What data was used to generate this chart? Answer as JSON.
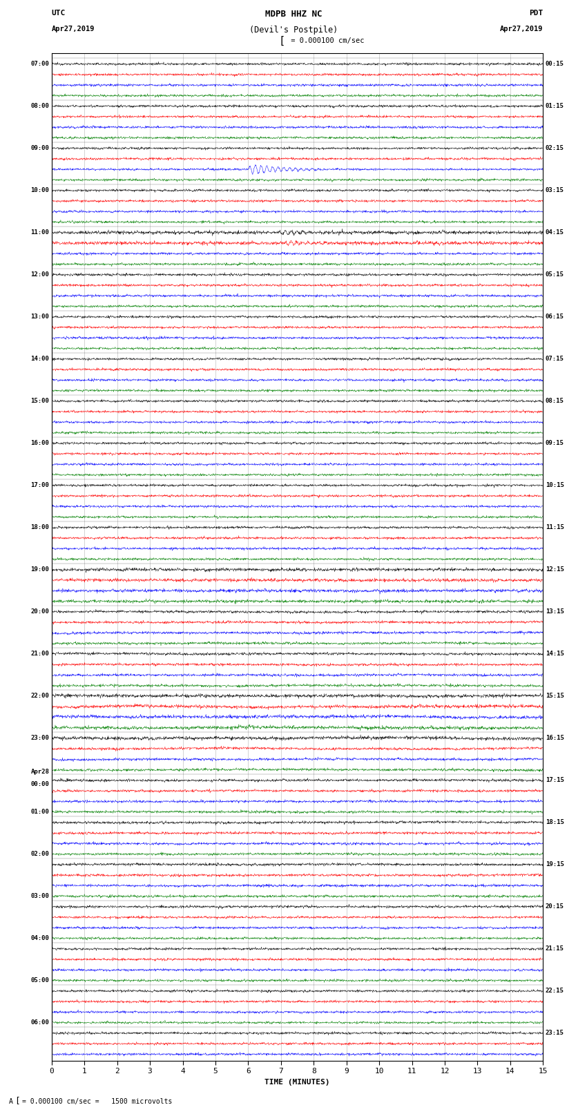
{
  "title_line1": "MDPB HHZ NC",
  "title_line2": "(Devil's Postpile)",
  "scale_label": "= 0.000100 cm/sec",
  "footer_label": "= 0.000100 cm/sec =   1500 microvolts",
  "utc_label": "UTC",
  "utc_date": "Apr27,2019",
  "pdt_label": "PDT",
  "pdt_date": "Apr27,2019",
  "xlabel": "TIME (MINUTES)",
  "left_times": [
    "07:00",
    "",
    "",
    "",
    "08:00",
    "",
    "",
    "",
    "09:00",
    "",
    "",
    "",
    "10:00",
    "",
    "",
    "",
    "11:00",
    "",
    "",
    "",
    "12:00",
    "",
    "",
    "",
    "13:00",
    "",
    "",
    "",
    "14:00",
    "",
    "",
    "",
    "15:00",
    "",
    "",
    "",
    "16:00",
    "",
    "",
    "",
    "17:00",
    "",
    "",
    "",
    "18:00",
    "",
    "",
    "",
    "19:00",
    "",
    "",
    "",
    "20:00",
    "",
    "",
    "",
    "21:00",
    "",
    "",
    "",
    "22:00",
    "",
    "",
    "",
    "23:00",
    "",
    "",
    "",
    "Apr28",
    "00:00",
    "",
    "",
    "01:00",
    "",
    "",
    "",
    "02:00",
    "",
    "",
    "",
    "03:00",
    "",
    "",
    "",
    "04:00",
    "",
    "",
    "",
    "05:00",
    "",
    "",
    "",
    "06:00",
    "",
    ""
  ],
  "right_times": [
    "00:15",
    "",
    "",
    "",
    "01:15",
    "",
    "",
    "",
    "02:15",
    "",
    "",
    "",
    "03:15",
    "",
    "",
    "",
    "04:15",
    "",
    "",
    "",
    "05:15",
    "",
    "",
    "",
    "06:15",
    "",
    "",
    "",
    "07:15",
    "",
    "",
    "",
    "08:15",
    "",
    "",
    "",
    "09:15",
    "",
    "",
    "",
    "10:15",
    "",
    "",
    "",
    "11:15",
    "",
    "",
    "",
    "12:15",
    "",
    "",
    "",
    "13:15",
    "",
    "",
    "",
    "14:15",
    "",
    "",
    "",
    "15:15",
    "",
    "",
    "",
    "16:15",
    "",
    "",
    "",
    "17:15",
    "",
    "",
    "",
    "18:15",
    "",
    "",
    "",
    "19:15",
    "",
    "",
    "",
    "20:15",
    "",
    "",
    "",
    "21:15",
    "",
    "",
    "",
    "22:15",
    "",
    "",
    "",
    "23:15",
    "",
    ""
  ],
  "colors": [
    "black",
    "red",
    "blue",
    "green"
  ],
  "bg_color": "white",
  "n_rows": 95,
  "n_cols": 1800,
  "x_min": 0,
  "x_max": 15,
  "fig_width": 8.5,
  "fig_height": 16.13
}
